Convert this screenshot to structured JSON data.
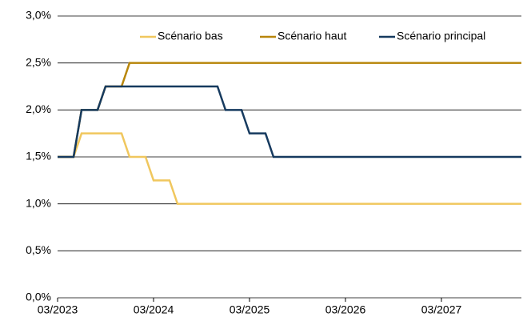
{
  "chart_data": {
    "type": "line",
    "x": [
      "03/2023",
      "04/2023",
      "05/2023",
      "06/2023",
      "07/2023",
      "08/2023",
      "09/2023",
      "10/2023",
      "11/2023",
      "12/2023",
      "01/2024",
      "02/2024",
      "03/2024",
      "04/2024",
      "05/2024",
      "06/2024",
      "07/2024",
      "08/2024",
      "09/2024",
      "10/2024",
      "11/2024",
      "12/2024",
      "01/2025",
      "02/2025",
      "03/2025",
      "04/2025",
      "05/2025",
      "06/2025",
      "07/2025",
      "08/2025",
      "09/2025",
      "10/2025",
      "11/2025",
      "12/2025",
      "01/2026",
      "02/2026",
      "03/2026",
      "04/2026",
      "05/2026",
      "06/2026",
      "07/2026",
      "08/2026",
      "09/2026",
      "10/2026",
      "11/2026",
      "12/2026",
      "01/2027",
      "02/2027",
      "03/2027",
      "04/2027",
      "05/2027",
      "06/2027",
      "07/2027",
      "08/2027",
      "09/2027",
      "10/2027",
      "11/2027",
      "12/2027",
      "01/2028"
    ],
    "xticks": [
      "03/2023",
      "03/2024",
      "03/2025",
      "03/2026",
      "03/2027"
    ],
    "series": [
      {
        "name": "Scénario bas",
        "color": "#f0c75e",
        "values": [
          1.5,
          1.5,
          1.5,
          1.75,
          1.75,
          1.75,
          1.75,
          1.75,
          1.75,
          1.5,
          1.5,
          1.5,
          1.25,
          1.25,
          1.25,
          1.0,
          1.0,
          1.0,
          1.0,
          1.0,
          1.0,
          1.0,
          1.0,
          1.0,
          1.0,
          1.0,
          1.0,
          1.0,
          1.0,
          1.0,
          1.0,
          1.0,
          1.0,
          1.0,
          1.0,
          1.0,
          1.0,
          1.0,
          1.0,
          1.0,
          1.0,
          1.0,
          1.0,
          1.0,
          1.0,
          1.0,
          1.0,
          1.0,
          1.0,
          1.0,
          1.0,
          1.0,
          1.0,
          1.0,
          1.0,
          1.0,
          1.0,
          1.0,
          1.0
        ]
      },
      {
        "name": "Scénario haut",
        "color": "#b8860b",
        "values": [
          1.5,
          1.5,
          1.5,
          2.0,
          2.0,
          2.0,
          2.25,
          2.25,
          2.25,
          2.5,
          2.5,
          2.5,
          2.5,
          2.5,
          2.5,
          2.5,
          2.5,
          2.5,
          2.5,
          2.5,
          2.5,
          2.5,
          2.5,
          2.5,
          2.5,
          2.5,
          2.5,
          2.5,
          2.5,
          2.5,
          2.5,
          2.5,
          2.5,
          2.5,
          2.5,
          2.5,
          2.5,
          2.5,
          2.5,
          2.5,
          2.5,
          2.5,
          2.5,
          2.5,
          2.5,
          2.5,
          2.5,
          2.5,
          2.5,
          2.5,
          2.5,
          2.5,
          2.5,
          2.5,
          2.5,
          2.5,
          2.5,
          2.5,
          2.5
        ]
      },
      {
        "name": "Scénario principal",
        "color": "#163a5f",
        "values": [
          1.5,
          1.5,
          1.5,
          2.0,
          2.0,
          2.0,
          2.25,
          2.25,
          2.25,
          2.25,
          2.25,
          2.25,
          2.25,
          2.25,
          2.25,
          2.25,
          2.25,
          2.25,
          2.25,
          2.25,
          2.25,
          2.0,
          2.0,
          2.0,
          1.75,
          1.75,
          1.75,
          1.5,
          1.5,
          1.5,
          1.5,
          1.5,
          1.5,
          1.5,
          1.5,
          1.5,
          1.5,
          1.5,
          1.5,
          1.5,
          1.5,
          1.5,
          1.5,
          1.5,
          1.5,
          1.5,
          1.5,
          1.5,
          1.5,
          1.5,
          1.5,
          1.5,
          1.5,
          1.5,
          1.5,
          1.5,
          1.5,
          1.5,
          1.5
        ]
      }
    ],
    "ylim": [
      0,
      3
    ],
    "yticks": [
      {
        "value": 0,
        "label": "0,0%"
      },
      {
        "value": 0.5,
        "label": "0,5%"
      },
      {
        "value": 1,
        "label": "1,0%"
      },
      {
        "value": 1.5,
        "label": "1,5%"
      },
      {
        "value": 2,
        "label": "2,0%"
      },
      {
        "value": 2.5,
        "label": "2,5%"
      },
      {
        "value": 3,
        "label": "3,0%"
      }
    ],
    "grid": true,
    "legend": "top"
  }
}
